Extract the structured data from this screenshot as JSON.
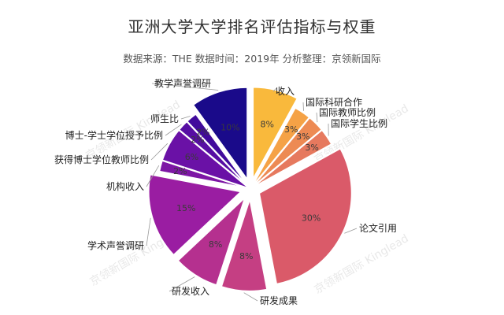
{
  "title": "亚洲大学大学排名评估指标与权重",
  "subtitle": "数据来源：THE  数据时间：2019年  分析整理：京领新国际",
  "watermark": "京领新国际 Kinglead",
  "chart_data": {
    "type": "pie",
    "title": "亚洲大学大学排名评估指标与权重",
    "subtitle": "数据来源：THE  数据时间：2019年  分析整理：京领新国际",
    "slices": [
      {
        "label": "收入",
        "value": 8,
        "value_label": "8%",
        "color": "#f9b93c",
        "exploded": true
      },
      {
        "label": "国际科研合作",
        "value": 3,
        "value_label": "3%",
        "color": "#f5a246",
        "exploded": false
      },
      {
        "label": "国际教师比例",
        "value": 3,
        "value_label": "3%",
        "color": "#ed8a53",
        "exploded": false
      },
      {
        "label": "国际学生比例",
        "value": 3,
        "value_label": "3%",
        "color": "#e6795e",
        "exploded": false
      },
      {
        "label": "论文引用",
        "value": 30,
        "value_label": "30%",
        "color": "#da5a69",
        "exploded": true
      },
      {
        "label": "研发成果",
        "value": 8,
        "value_label": "8%",
        "color": "#c53f83",
        "exploded": true
      },
      {
        "label": "研发收入",
        "value": 8,
        "value_label": "8%",
        "color": "#b5308f",
        "exploded": true
      },
      {
        "label": "学术声誉调研",
        "value": 15,
        "value_label": "15%",
        "color": "#9a1da2",
        "exploded": true
      },
      {
        "label": "机构收入",
        "value": 2,
        "value_label": "2%",
        "color": "#7d16a5",
        "exploded": false
      },
      {
        "label": "获得博士学位教师比例",
        "value": 6,
        "value_label": "6%",
        "color": "#6a11a6",
        "exploded": false
      },
      {
        "label": "博士-学士学位授予比例",
        "value": 2,
        "value_label": "2%",
        "color": "#570ea3",
        "exploded": false
      },
      {
        "label": "师生比",
        "value": 2,
        "value_label": "2%",
        "color": "#410a9c",
        "exploded": false
      },
      {
        "label": "教学声誉调研",
        "value": 10,
        "value_label": "10%",
        "color": "#1a0a8a",
        "exploded": true
      }
    ]
  }
}
